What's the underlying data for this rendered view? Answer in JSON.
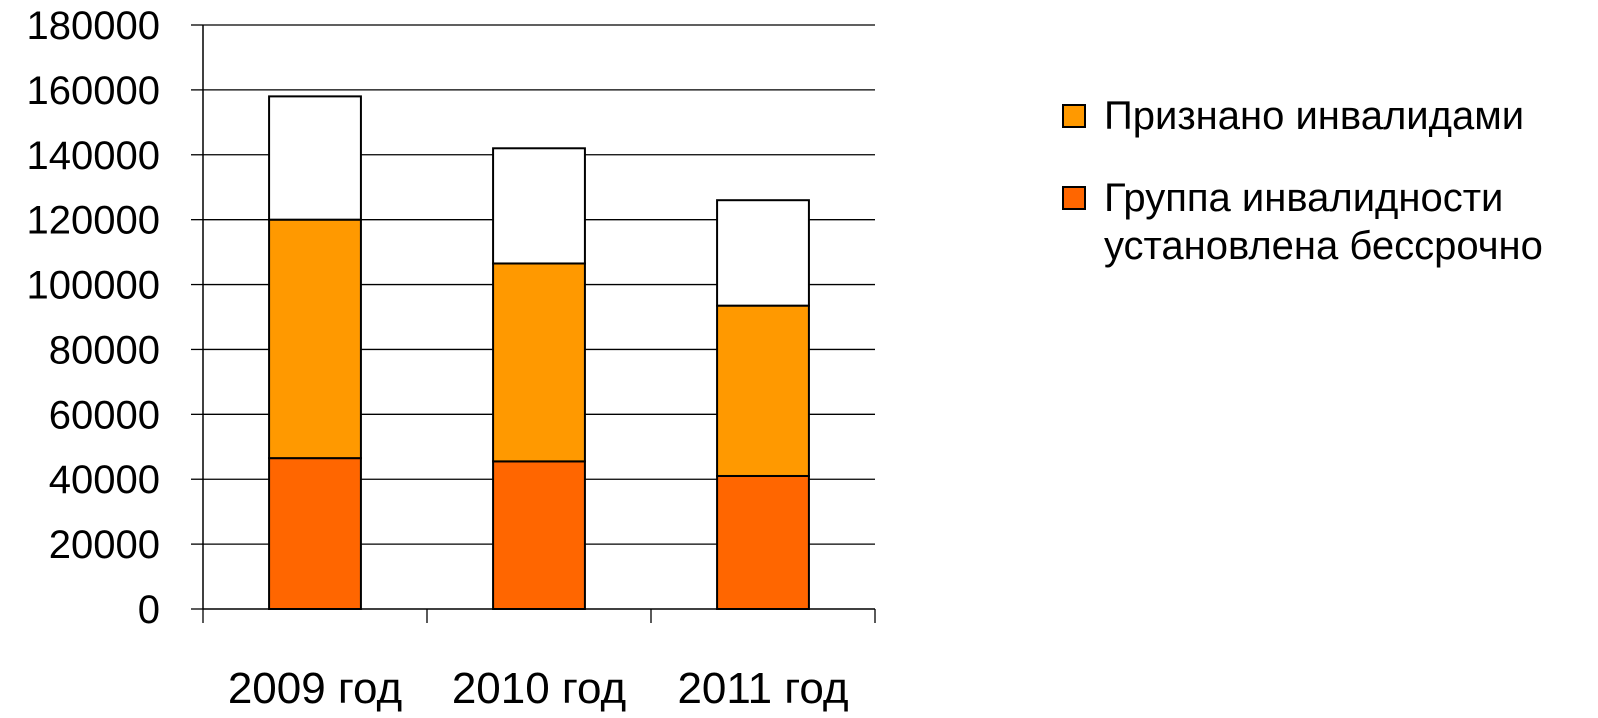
{
  "chart_data": {
    "type": "bar",
    "stacked": true,
    "categories": [
      "2009 год",
      "2010 год",
      "2011 год"
    ],
    "series": [
      {
        "name": "Группа инвалидности установлена бессрочно",
        "color": "#ff6600",
        "values": [
          46500,
          45500,
          41000
        ]
      },
      {
        "name": "Признано инвалидами",
        "color": "#ff9900",
        "values": [
          73500,
          61000,
          52500
        ]
      },
      {
        "name": "",
        "color": "#ffffff",
        "values": [
          38000,
          35500,
          32500
        ]
      }
    ],
    "yticks": [
      "0",
      "20000",
      "40000",
      "60000",
      "80000",
      "100000",
      "120000",
      "140000",
      "160000",
      "180000"
    ],
    "ylim": [
      0,
      180000
    ],
    "grid": true,
    "title": "",
    "xlabel": "",
    "ylabel": "",
    "legend": {
      "position": "right",
      "items": [
        {
          "label": "Признано инвалидами",
          "color": "#ff9900"
        },
        {
          "label": "Группа инвалидности установлена бессрочно",
          "color": "#ff6600"
        }
      ]
    }
  }
}
